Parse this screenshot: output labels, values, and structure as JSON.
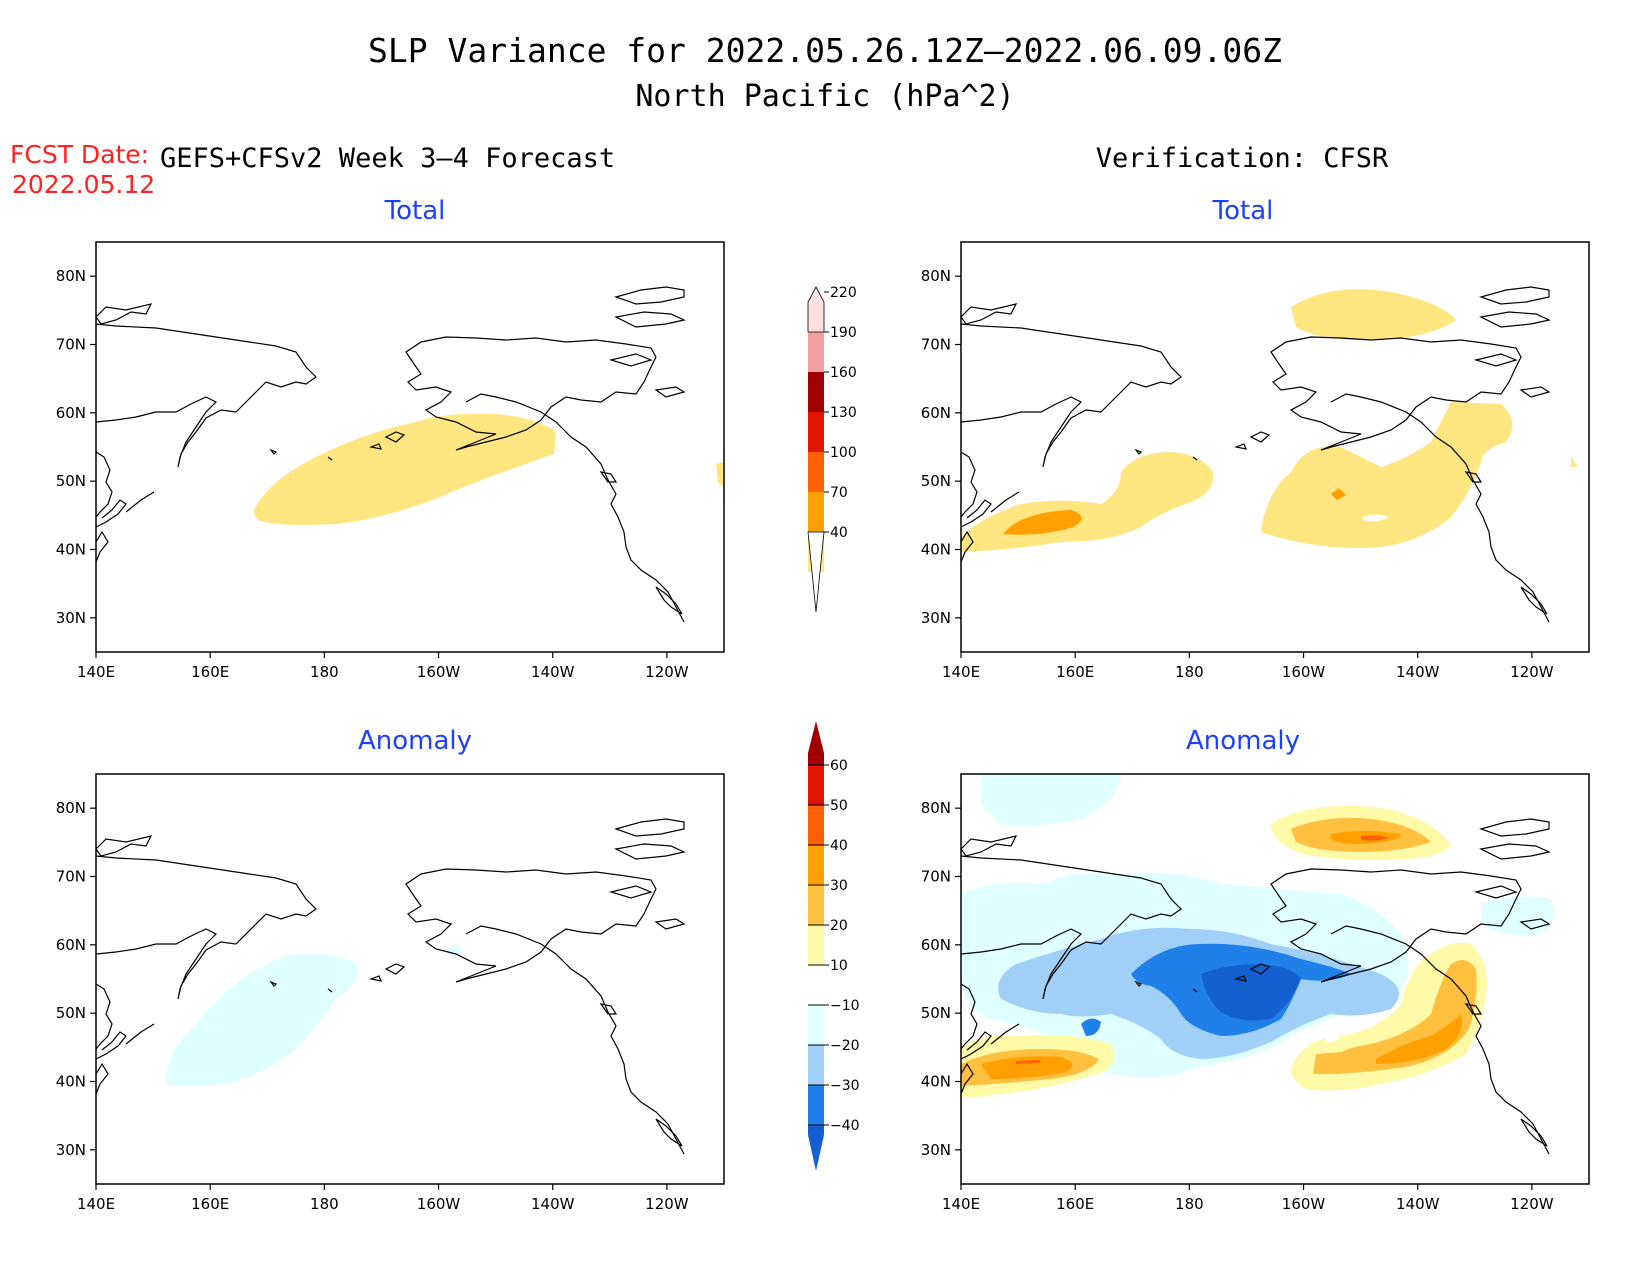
{
  "title_line1": "SLP Variance for 2022.05.26.12Z–2022.06.09.06Z",
  "title_line2": "North Pacific (hPa^2)",
  "fcst_date_label": "FCST Date:",
  "fcst_date_value": "2022.05.12",
  "left_column_title": "GEFS+CFSv2 Week 3–4 Forecast",
  "right_column_title": "Verification: CFSR",
  "panels": [
    {
      "id": "fcst-total",
      "title": "Total"
    },
    {
      "id": "verif-total",
      "title": "Total"
    },
    {
      "id": "fcst-anomaly",
      "title": "Anomaly"
    },
    {
      "id": "verif-anomaly",
      "title": "Anomaly"
    }
  ],
  "axes": {
    "lon_ticks": [
      "140E",
      "160E",
      "180",
      "160W",
      "140W",
      "120W"
    ],
    "lon_values": [
      140,
      160,
      180,
      200,
      220,
      240
    ],
    "lat_ticks": [
      "80N",
      "70N",
      "60N",
      "50N",
      "40N",
      "30N"
    ],
    "lat_values": [
      80,
      70,
      60,
      50,
      40,
      30
    ],
    "lon_range": [
      140,
      250
    ],
    "lat_range": [
      25,
      85
    ]
  },
  "colorbar_total": {
    "labels": [
      "40",
      "70",
      "100",
      "130",
      "160",
      "190",
      "220"
    ],
    "colors": [
      "#ffe680",
      "#ffa000",
      "#ff6000",
      "#e01400",
      "#a00000",
      "#f0a0a0",
      "#ffe0e0"
    ]
  },
  "colorbar_anomaly": {
    "labels": [
      "−40",
      "−30",
      "−20",
      "−10",
      "10",
      "20",
      "30",
      "40",
      "50",
      "60"
    ],
    "colors": [
      "#1560d0",
      "#2080ea",
      "#a0d0f8",
      "#e0ffff",
      "#ffffff",
      "#fffaa8",
      "#ffc040",
      "#ffa000",
      "#ff6000",
      "#e01400",
      "#a00000"
    ]
  },
  "colors": {
    "title_text": "#000000",
    "subtitle_text": "#1f3fff",
    "fcst_text": "#ff2020"
  }
}
